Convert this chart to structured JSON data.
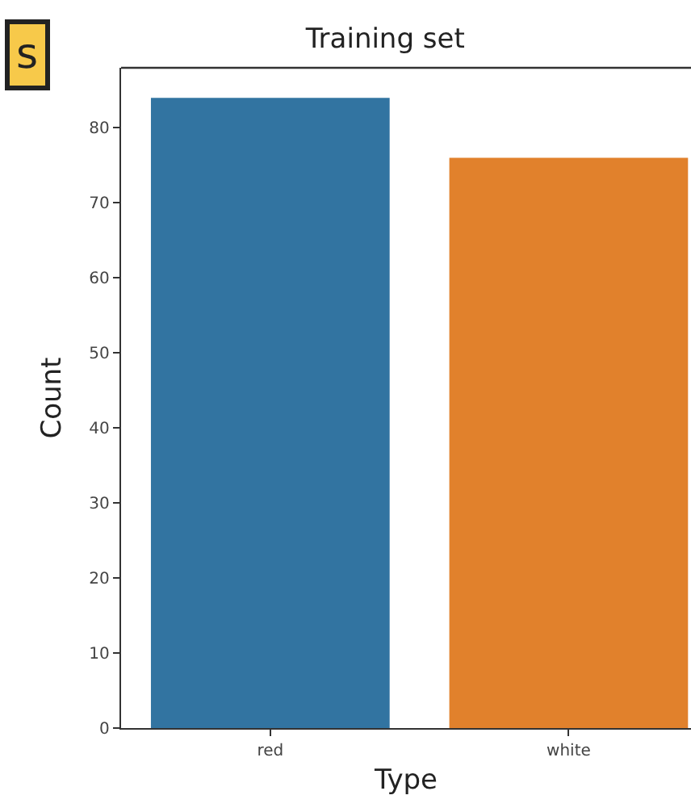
{
  "chart_data": {
    "type": "bar",
    "title": "Training set",
    "xlabel": "Type",
    "ylabel": "Count",
    "categories": [
      "red",
      "white"
    ],
    "colors": [
      "#3274a1",
      "#e1812c"
    ],
    "values": [
      84,
      76
    ],
    "ylim": [
      0,
      88
    ],
    "yticks": [
      0,
      10,
      20,
      30,
      40,
      50,
      60,
      70,
      80
    ],
    "annotations": [
      "s"
    ]
  }
}
